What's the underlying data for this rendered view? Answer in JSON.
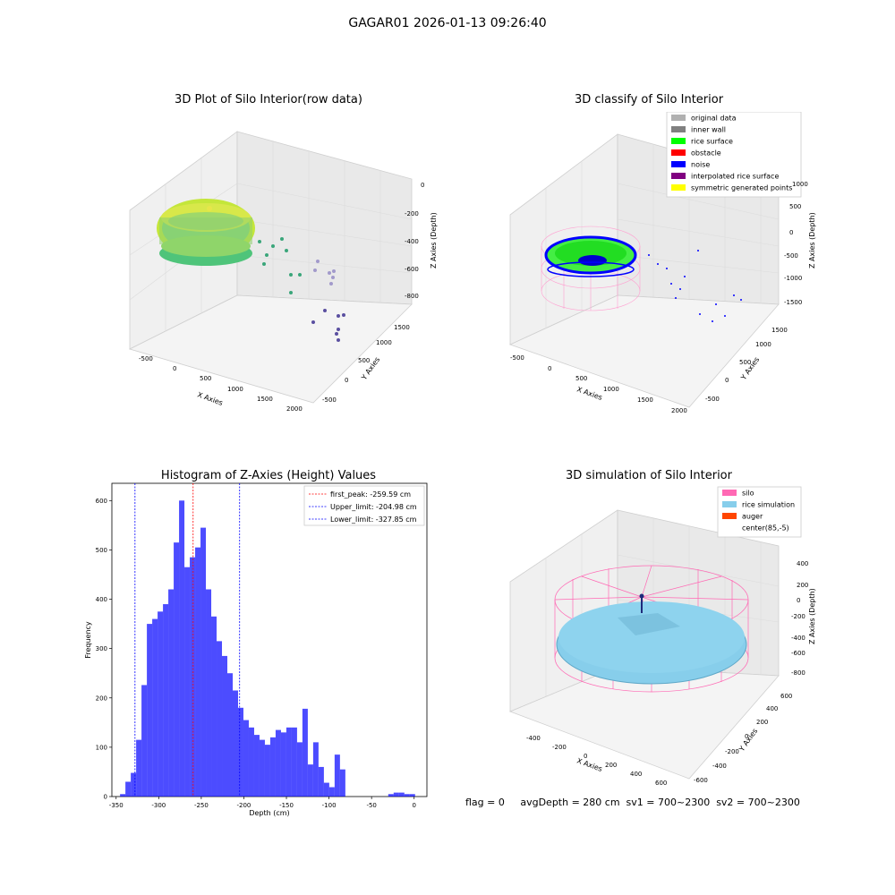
{
  "figure": {
    "title": "GAGAR01 2026-01-13 09:26:40"
  },
  "footer": {
    "text": "flag = 0     avgDepth = 280 cm  sv1 = 700~2300  sv2 = 700~2300"
  },
  "panels": {
    "raw": {
      "title": "3D Plot of Silo Interior(row data)",
      "xlabel": "X Axies",
      "ylabel": "Y Axies",
      "zlabel": "Z Axies (Depth)",
      "xticks": [
        "-500",
        "0",
        "500",
        "1000",
        "1500",
        "2000"
      ],
      "yticks": [
        "-500",
        "0",
        "500",
        "1000",
        "1500"
      ],
      "zticks": [
        "0",
        "-200",
        "-400",
        "-600",
        "-800"
      ]
    },
    "classify": {
      "title": "3D classify of Silo Interior",
      "xlabel": "X Axies",
      "ylabel": "Y Axies",
      "zlabel": "Z Axies (Depth)",
      "xticks": [
        "-500",
        "0",
        "500",
        "1000",
        "1500",
        "2000"
      ],
      "yticks": [
        "-500",
        "0",
        "500",
        "1000",
        "1500"
      ],
      "zticks": [
        "1000",
        "500",
        "0",
        "-500",
        "-1000",
        "-1500"
      ],
      "legend": [
        {
          "label": "original data",
          "color": "#b0b0b0"
        },
        {
          "label": "inner wall",
          "color": "#808080"
        },
        {
          "label": "rice surface",
          "color": "#00ff00"
        },
        {
          "label": "obstacle",
          "color": "#ff0000"
        },
        {
          "label": "noise",
          "color": "#0000ff"
        },
        {
          "label": "interpolated rice surface",
          "color": "#800080"
        },
        {
          "label": "symmetric generated points",
          "color": "#ffff00"
        }
      ]
    },
    "simulation": {
      "title": "3D simulation of Silo Interior",
      "xlabel": "X Axies",
      "ylabel": "Y Axies",
      "zlabel": "Z Axies (Depth)",
      "xticks": [
        "-400",
        "-200",
        "0",
        "200",
        "400",
        "600"
      ],
      "yticks": [
        "-600",
        "-400",
        "-200",
        "0",
        "200",
        "400",
        "600"
      ],
      "zticks": [
        "400",
        "200",
        "0",
        "-200",
        "-400",
        "-600",
        "-800"
      ],
      "legend": [
        {
          "label": "silo",
          "color": "#ff69b4"
        },
        {
          "label": "rice simulation",
          "color": "#87ceeb"
        },
        {
          "label": "auger",
          "color": "#ff4500"
        },
        {
          "label": "center(85,-5)",
          "color": "#ffffff"
        }
      ]
    }
  },
  "chart_data": {
    "type": "bar",
    "title": "Histogram of Z-Axies (Height) Values",
    "xlabel": "Depth (cm)",
    "ylabel": "Frequency",
    "xlim": [
      -355,
      15
    ],
    "ylim": [
      0,
      635
    ],
    "xticks": [
      -350,
      -300,
      -250,
      -200,
      -150,
      -100,
      -50,
      0
    ],
    "yticks": [
      0,
      100,
      200,
      300,
      400,
      500,
      600
    ],
    "bar_color": "#0000ff",
    "bin_width": 6.3,
    "bin_starts": [
      -345.4,
      -339.1,
      -332.8,
      -326.5,
      -320.2,
      -313.9,
      -307.6,
      -301.3,
      -295,
      -288.7,
      -282.4,
      -276.1,
      -269.8,
      -263.5,
      -257.2,
      -250.9,
      -244.6,
      -238.3,
      -232,
      -225.7,
      -219.4,
      -213.1,
      -206.8,
      -200.5,
      -194.2,
      -187.9,
      -181.6,
      -175.3,
      -169,
      -162.7,
      -156.4,
      -150.1,
      -143.8,
      -137.5,
      -131.2,
      -124.9,
      -118.6,
      -112.3,
      -106,
      -99.7,
      -93.4,
      -87.1,
      -80.8,
      -74.5,
      -68.2,
      -61.9,
      -55.6,
      -49.3,
      -43,
      -36.7,
      -30.4,
      -24.1,
      -17.8,
      -11.5,
      -5.2
    ],
    "counts": [
      5,
      30,
      48,
      115,
      226,
      350,
      360,
      375,
      390,
      420,
      515,
      600,
      465,
      485,
      505,
      545,
      420,
      365,
      315,
      285,
      250,
      215,
      180,
      155,
      140,
      125,
      115,
      105,
      120,
      135,
      130,
      140,
      140,
      110,
      178,
      65,
      110,
      60,
      28,
      19,
      85,
      55,
      0,
      0,
      0,
      0,
      0,
      0,
      0,
      0,
      5,
      8,
      8,
      5,
      5
    ],
    "lines": [
      {
        "label": "first_peak: -259.59 cm",
        "x": -259.59,
        "color": "#ff0000"
      },
      {
        "label": "Upper_limit: -204.98 cm",
        "x": -204.98,
        "color": "#0000ff"
      },
      {
        "label": "Lower_limit: -327.85 cm",
        "x": -327.85,
        "color": "#0000ff"
      }
    ],
    "legend_position": "top-right"
  }
}
